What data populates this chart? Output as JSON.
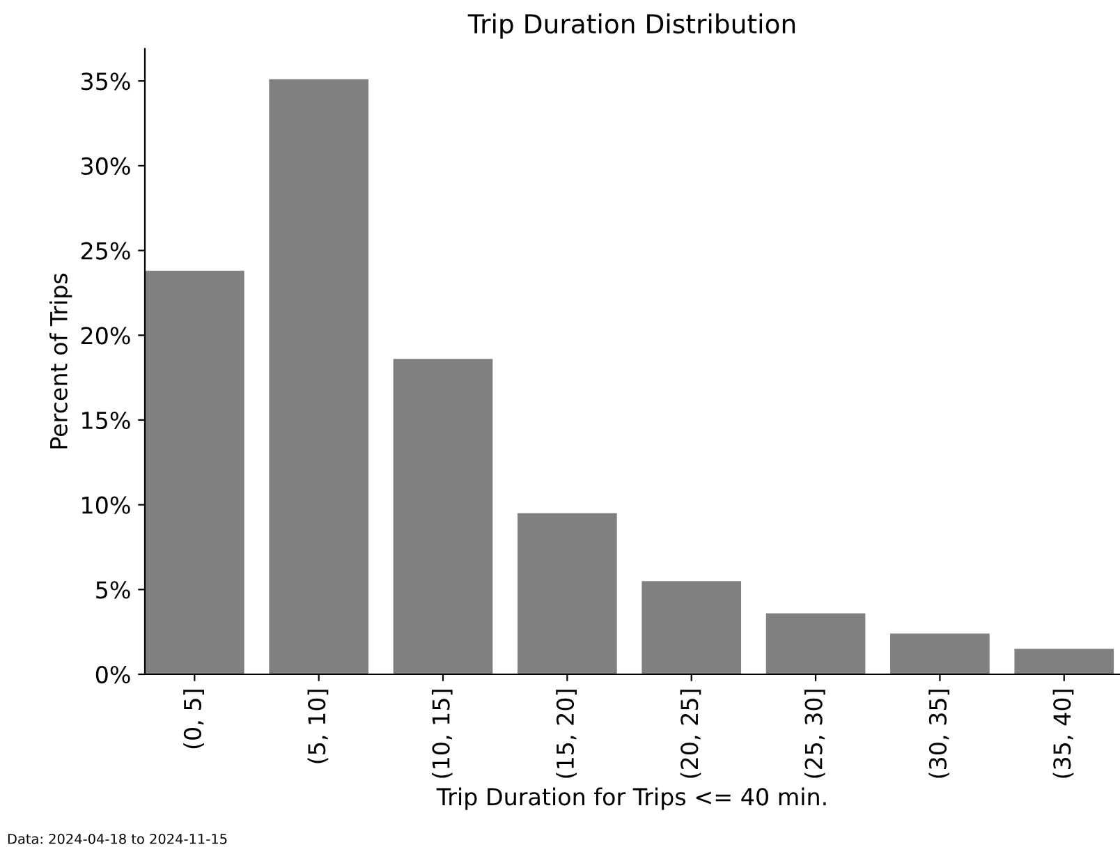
{
  "chart_data": {
    "type": "bar",
    "title": "Trip Duration Distribution",
    "xlabel": "Trip Duration for Trips <= 40 min.",
    "ylabel": "Percent of Trips",
    "categories": [
      "(0, 5]",
      "(5, 10]",
      "(10, 15]",
      "(15, 20]",
      "(20, 25]",
      "(25, 30]",
      "(30, 35]",
      "(35, 40]"
    ],
    "values": [
      23.8,
      35.1,
      18.6,
      9.5,
      5.5,
      3.6,
      2.4,
      1.5
    ],
    "color": "#808080",
    "ylim": [
      0,
      36.9
    ],
    "yticks": [
      {
        "value": 0,
        "label": "0%"
      },
      {
        "value": 5,
        "label": "5%"
      },
      {
        "value": 10,
        "label": "10%"
      },
      {
        "value": 15,
        "label": "15%"
      },
      {
        "value": 20,
        "label": "20%"
      },
      {
        "value": 25,
        "label": "25%"
      },
      {
        "value": 30,
        "label": "30%"
      },
      {
        "value": 35,
        "label": "35%"
      }
    ],
    "grid": false,
    "legend": false,
    "annotations": [
      "Data: 2024-04-18 to 2024-11-15"
    ]
  }
}
